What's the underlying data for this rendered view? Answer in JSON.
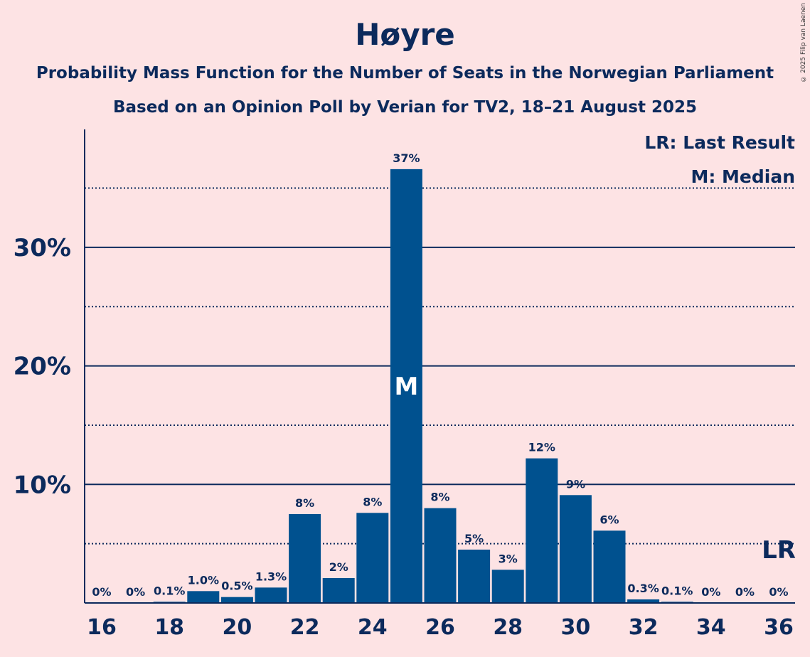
{
  "title": "Høyre",
  "subtitle1": "Probability Mass Function for the Number of Seats in the Norwegian Parliament",
  "subtitle2": "Based on an Opinion Poll by Verian for TV2, 18–21 August 2025",
  "copyright": "© 2025 Filip van Laenen",
  "legend": {
    "last_result": "LR: Last Result",
    "median": "M: Median"
  },
  "colors": {
    "background": "#fde3e4",
    "bar": "#00518f",
    "text": "#0c2a5c"
  },
  "chart_data": {
    "type": "bar",
    "categories": [
      16,
      17,
      18,
      19,
      20,
      21,
      22,
      23,
      24,
      25,
      26,
      27,
      28,
      29,
      30,
      31,
      32,
      33,
      34,
      35,
      36
    ],
    "values": [
      0,
      0,
      0.1,
      1.0,
      0.5,
      1.3,
      7.5,
      2.1,
      7.6,
      36.6,
      8.0,
      4.5,
      2.8,
      12.2,
      9.1,
      6.1,
      0.3,
      0.1,
      0,
      0,
      0
    ],
    "value_labels": [
      "0%",
      "0%",
      "0.1%",
      "1.0%",
      "0.5%",
      "1.3%",
      "8%",
      "2%",
      "8%",
      "37%",
      "8%",
      "5%",
      "3%",
      "12%",
      "9%",
      "6%",
      "0.3%",
      "0.1%",
      "0%",
      "0%",
      "0%"
    ],
    "x_tick_labels": [
      "16",
      "18",
      "20",
      "22",
      "24",
      "26",
      "28",
      "30",
      "32",
      "34",
      "36"
    ],
    "y_tick_labels": [
      "10%",
      "20%",
      "30%"
    ],
    "y_major_ticks": [
      10,
      20,
      30
    ],
    "y_minor_ticks": [
      5,
      15,
      25,
      35
    ],
    "ylim": [
      0,
      40
    ],
    "median_seat": 25,
    "median_marker": "M",
    "last_result_seat": 36,
    "last_result_marker": "LR",
    "legend_position": "top-right"
  }
}
